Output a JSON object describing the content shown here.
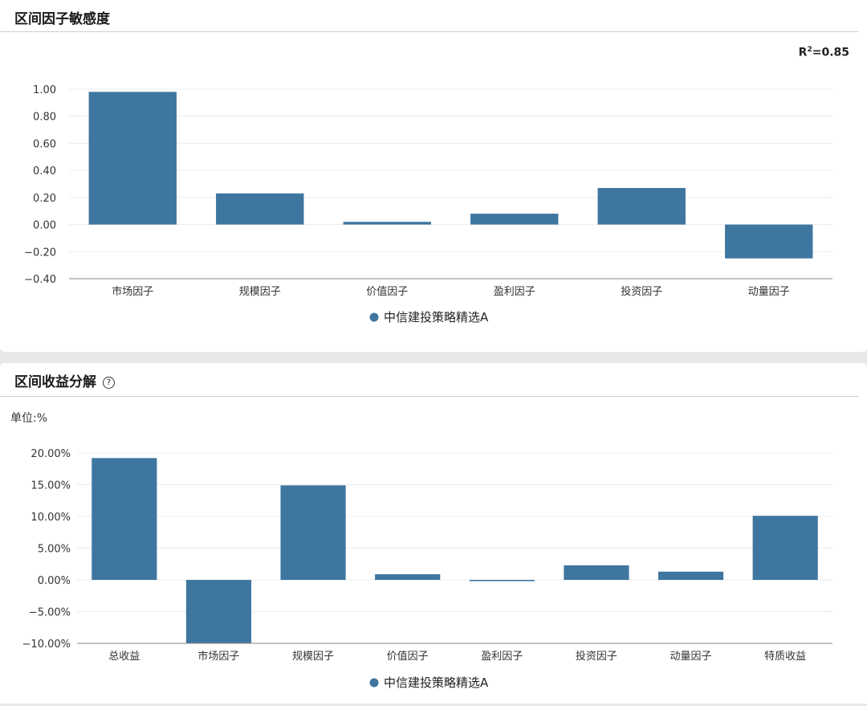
{
  "panel1": {
    "title": "区间因子敏感度",
    "r2_label": "R",
    "r2_sup": "2",
    "r2_value": "=0.85"
  },
  "panel2": {
    "title": "区间收益分解",
    "help_icon": "?",
    "unit": "单位:%"
  },
  "colors": {
    "bar": "#3e76a0",
    "axis": "#888888",
    "grid": "#ececec"
  },
  "chart_data": [
    {
      "type": "bar",
      "title": "区间因子敏感度",
      "categories": [
        "市场因子",
        "规模因子",
        "价值因子",
        "盈利因子",
        "投资因子",
        "动量因子"
      ],
      "series": [
        {
          "name": "中信建投策略精选A",
          "values": [
            0.98,
            0.23,
            0.02,
            0.08,
            0.27,
            -0.25
          ]
        }
      ],
      "ylim": [
        -0.4,
        1.0
      ],
      "yticks": [
        1.0,
        0.8,
        0.6,
        0.4,
        0.2,
        0.0,
        -0.2,
        -0.4
      ],
      "ytick_labels": [
        "1.00",
        "0.80",
        "0.60",
        "0.40",
        "0.20",
        "0.00",
        "−0.20",
        "−0.40"
      ],
      "grid": true,
      "legend": "bottom-center"
    },
    {
      "type": "bar",
      "title": "区间收益分解",
      "categories": [
        "总收益",
        "市场因子",
        "规模因子",
        "价值因子",
        "盈利因子",
        "投资因子",
        "动量因子",
        "特质收益"
      ],
      "series": [
        {
          "name": "中信建投策略精选A",
          "values": [
            19.2,
            -10.0,
            14.9,
            0.9,
            -0.2,
            2.3,
            1.3,
            10.1
          ]
        }
      ],
      "ylim": [
        -10,
        20
      ],
      "yticks": [
        20,
        15,
        10,
        5,
        0,
        -5,
        -10
      ],
      "ytick_labels": [
        "20.00%",
        "15.00%",
        "10.00%",
        "5.00%",
        "0.00%",
        "−5.00%",
        "−10.00%"
      ],
      "grid": true,
      "legend": "bottom-center"
    }
  ]
}
